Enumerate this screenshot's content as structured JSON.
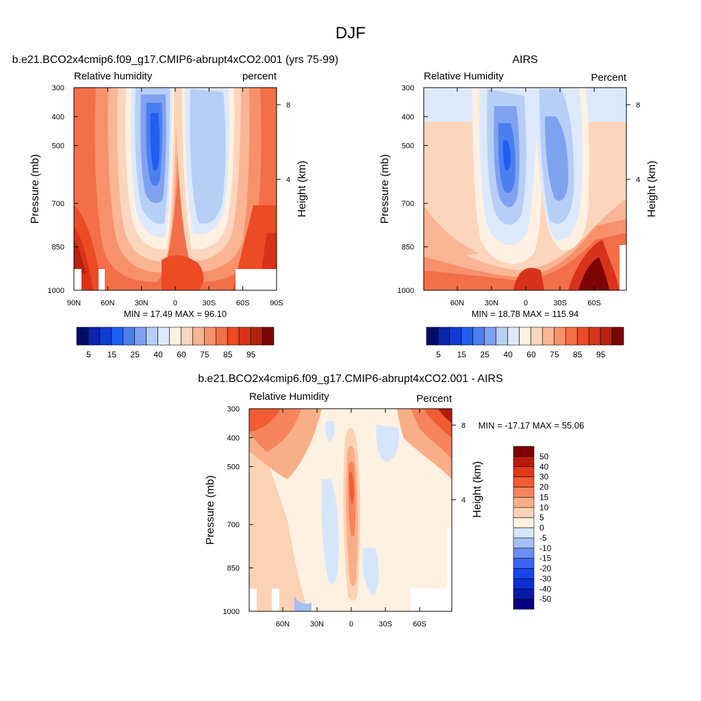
{
  "figure": {
    "title": "DJF"
  },
  "palettes": {
    "abs": [
      "#020c64",
      "#0b24a8",
      "#0f3cd5",
      "#1f5ef0",
      "#4b7ff0",
      "#7fa2f0",
      "#b7cef7",
      "#dce9fb",
      "#fff0e2",
      "#fcd5bd",
      "#f9b594",
      "#f6916c",
      "#f36f48",
      "#ec4b24",
      "#d8331a",
      "#b5230f",
      "#7c0404"
    ],
    "diff": [
      "#050080",
      "#081aa8",
      "#0c2ed0",
      "#1445e8",
      "#3b66f0",
      "#6d8ef2",
      "#a5bff6",
      "#d6e6fa",
      "#fff1e2",
      "#fcd2b5",
      "#f9ae88",
      "#f6855e",
      "#f35c32",
      "#e03a14",
      "#b81b0b",
      "#800000"
    ]
  },
  "panels": [
    {
      "id": "model",
      "title": "b.e21.BCO2x4cmip6.f09_g17.CMIP6-abrupt4xCO2.001 (yrs 75-99)",
      "left_label": "Relative humidity",
      "right_label": "percent",
      "ylabel": "Pressure (mb)",
      "ylabel_right": "Height (km)",
      "yticks": [
        "300",
        "400",
        "500",
        "700",
        "850",
        "1000"
      ],
      "yticks_right": [
        "8",
        "4"
      ],
      "xticks": [
        "90N",
        "60N",
        "30N",
        "0",
        "30S",
        "60S",
        "90S"
      ],
      "minmax": "MIN =  17.49  MAX =  96.10",
      "colorbar_labels": [
        "5",
        "15",
        "25",
        "40",
        "60",
        "75",
        "85",
        "95"
      ],
      "chart_data": {
        "type": "heatmap",
        "x": [
          "90N",
          "60N",
          "30N",
          "0",
          "30S",
          "60S",
          "90S"
        ],
        "y_pressure_mb": [
          300,
          400,
          500,
          700,
          850,
          1000
        ],
        "min": 17.49,
        "max": 96.1,
        "levels": [
          5,
          10,
          15,
          20,
          25,
          30,
          40,
          50,
          60,
          70,
          75,
          80,
          85,
          90,
          95
        ]
      }
    },
    {
      "id": "obs",
      "title": "AIRS",
      "left_label": "Relative Humidity",
      "right_label": "Percent",
      "ylabel": "Pressure (mb)",
      "ylabel_right": "Height (km)",
      "yticks": [
        "300",
        "400",
        "500",
        "700",
        "850",
        "1000"
      ],
      "yticks_right": [
        "8",
        "4"
      ],
      "xticks": [
        "60N",
        "30N",
        "0",
        "30S",
        "60S"
      ],
      "minmax": "MIN =  18.78  MAX = 115.94",
      "colorbar_labels": [
        "5",
        "15",
        "25",
        "40",
        "60",
        "75",
        "85",
        "95"
      ],
      "chart_data": {
        "type": "heatmap",
        "x": [
          "60N",
          "30N",
          "0",
          "30S",
          "60S"
        ],
        "y_pressure_mb": [
          300,
          400,
          500,
          700,
          850,
          1000
        ],
        "min": 18.78,
        "max": 115.94,
        "levels": [
          5,
          10,
          15,
          20,
          25,
          30,
          40,
          50,
          60,
          70,
          75,
          80,
          85,
          90,
          95
        ]
      }
    },
    {
      "id": "diff",
      "title": "b.e21.BCO2x4cmip6.f09_g17.CMIP6-abrupt4xCO2.001 - AIRS",
      "left_label": "Relative Humidity",
      "right_label": "Percent",
      "ylabel": "Pressure (mb)",
      "ylabel_right": "Height (km)",
      "yticks": [
        "300",
        "400",
        "500",
        "700",
        "850",
        "1000"
      ],
      "yticks_right": [
        "8",
        "4"
      ],
      "xticks": [
        "60N",
        "30N",
        "0",
        "30S",
        "60S"
      ],
      "minmax": "MIN = -17.17  MAX =  55.06",
      "colorbar_labels": [
        "50",
        "40",
        "30",
        "20",
        "15",
        "10",
        "5",
        "0",
        "-5",
        "-10",
        "-15",
        "-20",
        "-30",
        "-40",
        "-50"
      ],
      "chart_data": {
        "type": "heatmap",
        "x": [
          "60N",
          "30N",
          "0",
          "30S",
          "60S"
        ],
        "y_pressure_mb": [
          300,
          400,
          500,
          700,
          850,
          1000
        ],
        "min": -17.17,
        "max": 55.06,
        "levels": [
          -50,
          -40,
          -30,
          -20,
          -15,
          -10,
          -5,
          0,
          5,
          10,
          15,
          20,
          30,
          40,
          50
        ]
      }
    }
  ]
}
